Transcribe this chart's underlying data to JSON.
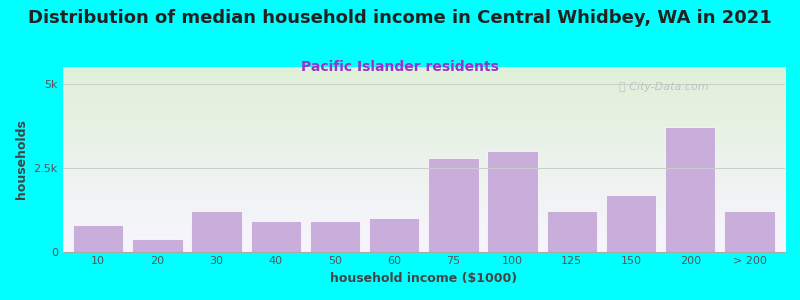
{
  "title": "Distribution of median household income in Central Whidbey, WA in 2021",
  "subtitle": "Pacific Islander residents",
  "xlabel": "household income ($1000)",
  "ylabel": "households",
  "bar_labels": [
    "10",
    "20",
    "30",
    "40",
    "50",
    "60",
    "75",
    "100",
    "125",
    "150",
    "200",
    "> 200"
  ],
  "bar_values": [
    800,
    380,
    1200,
    900,
    900,
    1000,
    2800,
    3000,
    1200,
    1700,
    3700,
    1200
  ],
  "bar_color": "#C9ADDB",
  "bar_edgecolor": "#ffffff",
  "ylim": [
    0,
    5500
  ],
  "yticks": [
    0,
    2500,
    5000
  ],
  "ytick_labels": [
    "0",
    "2.5k",
    "5k"
  ],
  "background_outer": "#00FFFF",
  "grad_top": "#dff0d8",
  "grad_bottom": "#f8f5ff",
  "title_fontsize": 13,
  "subtitle_fontsize": 10,
  "subtitle_color": "#9933cc",
  "axis_label_fontsize": 9,
  "tick_fontsize": 8,
  "watermark_text": "ⓘ City-Data.com",
  "watermark_color": "#bbbbbb"
}
